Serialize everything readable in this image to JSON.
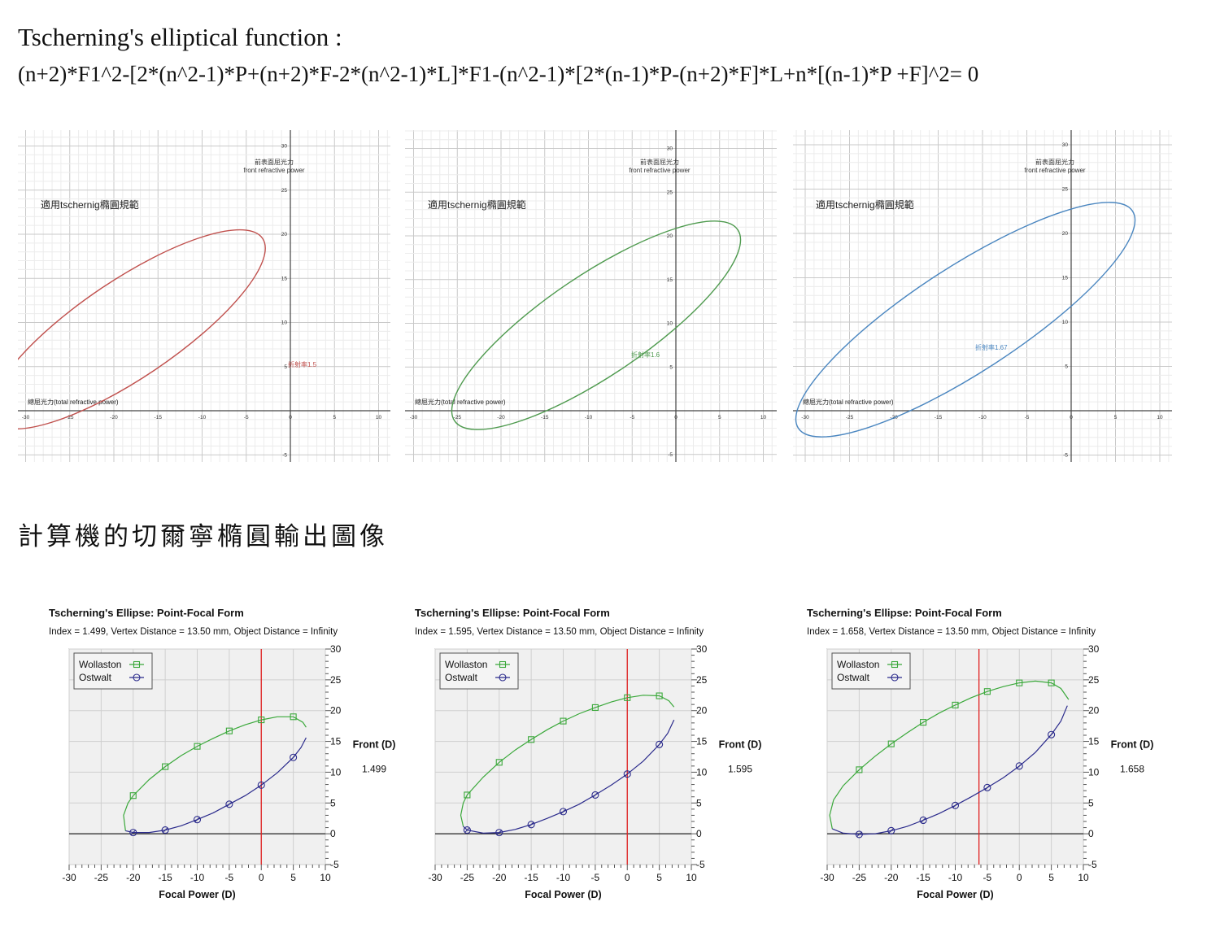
{
  "header": {
    "title": "Tscherning's elliptical function :",
    "formula": "(n+2)*F1^2-[2*(n^2-1)*P+(n+2)*F-2*(n^2-1)*L]*F1-(n^2-1)*[2*(n-1)*P-(n+2)*F]*L+n*[(n-1)*P +F]^2= 0"
  },
  "section2_title": "計算機的切爾寧橢圓輸出圖像",
  "graph_plots": [
    {
      "region_label": "適用tschernig橢圓規範",
      "y_axis_label_cn": "前表面屈光力",
      "y_axis_label_en": "front refractive power",
      "x_axis_label": "總屈光力(total refractive power)",
      "curve_label": "折射率1.5",
      "curve_color": "#c0504d",
      "x_ticks": [
        "-30",
        "-25",
        "-20",
        "-15",
        "-10",
        "-5",
        "0",
        "5",
        "10"
      ],
      "y_ticks": [
        "30",
        "25",
        "20",
        "15",
        "10",
        "5",
        "-5"
      ]
    },
    {
      "region_label": "適用tschernig橢圓規範",
      "y_axis_label_cn": "前表面屈光力",
      "y_axis_label_en": "front refractive power",
      "x_axis_label": "總屈光力(total refractive power)",
      "curve_label": "折射率1.6",
      "curve_color": "#4e9a4e",
      "x_ticks": [
        "-30",
        "-25",
        "-20",
        "-15",
        "-10",
        "-5",
        "0",
        "5",
        "10"
      ],
      "y_ticks": [
        "30",
        "25",
        "20",
        "15",
        "10",
        "5",
        "-5"
      ]
    },
    {
      "region_label": "適用tschernig橢圓規範",
      "y_axis_label_cn": "前表面屈光力",
      "y_axis_label_en": "front refractive power",
      "x_axis_label": "總屈光力(total refractive power)",
      "curve_label": "折射率1.67",
      "curve_color": "#4a86c0",
      "x_ticks": [
        "-30",
        "-25",
        "-20",
        "-15",
        "-10",
        "-5",
        "0",
        "5",
        "10"
      ],
      "y_ticks": [
        "30",
        "25",
        "20",
        "15",
        "10",
        "5",
        "-5"
      ]
    }
  ],
  "chart_data": [
    {
      "type": "line",
      "title": "Tscherning's Ellipse: Point-Focal Form",
      "subtitle": "Index = 1.499, Vertex Distance = 13.50 mm, Object Distance = Infinity",
      "xlabel": "Focal Power (D)",
      "ylabel": "Front (D)",
      "ylabel_value": "1.499",
      "xlim": [
        -30,
        10
      ],
      "ylim": [
        -5,
        30
      ],
      "x_ticks": [
        -30,
        -25,
        -20,
        -15,
        -10,
        -5,
        0,
        5,
        10
      ],
      "y_ticks": [
        30,
        25,
        20,
        15,
        10,
        5,
        0,
        -5
      ],
      "legend": "top-left",
      "grid": true,
      "vline_x": 0,
      "series": [
        {
          "name": "Wollaston",
          "color": "#3aa83a",
          "marker": "square",
          "curve": [
            [
              -21.2,
              0.5
            ],
            [
              -21.5,
              3
            ],
            [
              -20.8,
              5
            ],
            [
              -20,
              6.2
            ],
            [
              -17.5,
              8.8
            ],
            [
              -15,
              10.9
            ],
            [
              -12.5,
              12.7
            ],
            [
              -10,
              14.2
            ],
            [
              -7.5,
              15.5
            ],
            [
              -5,
              16.7
            ],
            [
              -2.5,
              17.7
            ],
            [
              0,
              18.5
            ],
            [
              2.5,
              19
            ],
            [
              5,
              19
            ],
            [
              6.5,
              18.1
            ],
            [
              7,
              17.3
            ]
          ],
          "markers": [
            [
              -20,
              6.2
            ],
            [
              -15,
              10.9
            ],
            [
              -10,
              14.2
            ],
            [
              -5,
              16.7
            ],
            [
              0,
              18.5
            ],
            [
              5,
              19
            ]
          ]
        },
        {
          "name": "Ostwalt",
          "color": "#2b2b8c",
          "marker": "circle",
          "curve": [
            [
              -21.2,
              0.5
            ],
            [
              -20,
              0.2
            ],
            [
              -17.5,
              0.2
            ],
            [
              -15,
              0.6
            ],
            [
              -12.5,
              1.3
            ],
            [
              -10,
              2.3
            ],
            [
              -7.5,
              3.4
            ],
            [
              -5,
              4.8
            ],
            [
              -2.5,
              6.2
            ],
            [
              0,
              7.9
            ],
            [
              2.5,
              9.9
            ],
            [
              5,
              12.4
            ],
            [
              6.2,
              14
            ],
            [
              7,
              15.6
            ]
          ],
          "markers": [
            [
              -20,
              0.2
            ],
            [
              -15,
              0.6
            ],
            [
              -10,
              2.3
            ],
            [
              -5,
              4.8
            ],
            [
              0,
              7.9
            ],
            [
              5,
              12.4
            ]
          ]
        }
      ]
    },
    {
      "type": "line",
      "title": "Tscherning's Ellipse: Point-Focal Form",
      "subtitle": "Index = 1.595, Vertex Distance = 13.50 mm, Object Distance = Infinity",
      "xlabel": "Focal Power (D)",
      "ylabel": "Front (D)",
      "ylabel_value": "1.595",
      "xlim": [
        -30,
        10
      ],
      "ylim": [
        -5,
        30
      ],
      "x_ticks": [
        -30,
        -25,
        -20,
        -15,
        -10,
        -5,
        0,
        5,
        10
      ],
      "y_ticks": [
        30,
        25,
        20,
        15,
        10,
        5,
        0,
        -5
      ],
      "legend": "top-left",
      "grid": true,
      "vline_x": 0,
      "series": [
        {
          "name": "Wollaston",
          "color": "#3aa83a",
          "marker": "square",
          "curve": [
            [
              -25.6,
              1.2
            ],
            [
              -26,
              3
            ],
            [
              -25.6,
              5
            ],
            [
              -25,
              6.3
            ],
            [
              -22.5,
              9.2
            ],
            [
              -20,
              11.6
            ],
            [
              -17.5,
              13.6
            ],
            [
              -15,
              15.3
            ],
            [
              -12.5,
              16.9
            ],
            [
              -10,
              18.3
            ],
            [
              -7.5,
              19.5
            ],
            [
              -5,
              20.5
            ],
            [
              -2.5,
              21.4
            ],
            [
              0,
              22.1
            ],
            [
              2.5,
              22.5
            ],
            [
              5,
              22.4
            ],
            [
              6.5,
              21.6
            ],
            [
              7.3,
              20.6
            ]
          ],
          "markers": [
            [
              -25,
              6.3
            ],
            [
              -20,
              11.6
            ],
            [
              -15,
              15.3
            ],
            [
              -10,
              18.3
            ],
            [
              -5,
              20.5
            ],
            [
              0,
              22.1
            ],
            [
              5,
              22.4
            ]
          ]
        },
        {
          "name": "Ostwalt",
          "color": "#2b2b8c",
          "marker": "circle",
          "curve": [
            [
              -25.6,
              1.2
            ],
            [
              -25,
              0.6
            ],
            [
              -22.5,
              0.1
            ],
            [
              -20,
              0.2
            ],
            [
              -17.5,
              0.7
            ],
            [
              -15,
              1.5
            ],
            [
              -12.5,
              2.5
            ],
            [
              -10,
              3.6
            ],
            [
              -7.5,
              4.8
            ],
            [
              -5,
              6.3
            ],
            [
              -2.5,
              7.9
            ],
            [
              0,
              9.7
            ],
            [
              2.5,
              11.8
            ],
            [
              5,
              14.5
            ],
            [
              6.3,
              16.3
            ],
            [
              7.3,
              18.5
            ]
          ],
          "markers": [
            [
              -25,
              0.6
            ],
            [
              -20,
              0.2
            ],
            [
              -15,
              1.5
            ],
            [
              -10,
              3.6
            ],
            [
              -5,
              6.3
            ],
            [
              0,
              9.7
            ],
            [
              5,
              14.5
            ]
          ]
        }
      ]
    },
    {
      "type": "line",
      "title": "Tscherning's Ellipse: Point-Focal Form",
      "subtitle": "Index = 1.658, Vertex Distance = 13.50 mm, Object Distance = Infinity",
      "xlabel": "Focal Power (D)",
      "ylabel": "Front (D)",
      "ylabel_value": "1.658",
      "xlim": [
        -30,
        10
      ],
      "ylim": [
        -5,
        30
      ],
      "x_ticks": [
        -30,
        -25,
        -20,
        -15,
        -10,
        -5,
        0,
        5,
        10
      ],
      "y_ticks": [
        30,
        25,
        20,
        15,
        10,
        5,
        0,
        -5
      ],
      "legend": "top-left",
      "grid": true,
      "vline_x": -6.3,
      "series": [
        {
          "name": "Wollaston",
          "color": "#3aa83a",
          "marker": "square",
          "curve": [
            [
              -29.2,
              0.8
            ],
            [
              -29.6,
              3
            ],
            [
              -29,
              5.5
            ],
            [
              -27.5,
              7.8
            ],
            [
              -25,
              10.4
            ],
            [
              -22.5,
              12.6
            ],
            [
              -20,
              14.6
            ],
            [
              -17.5,
              16.4
            ],
            [
              -15,
              18.1
            ],
            [
              -12.5,
              19.6
            ],
            [
              -10,
              20.9
            ],
            [
              -7.5,
              22.1
            ],
            [
              -5,
              23.1
            ],
            [
              -2.5,
              23.9
            ],
            [
              0,
              24.5
            ],
            [
              2.5,
              24.8
            ],
            [
              5,
              24.5
            ],
            [
              6.5,
              23.6
            ],
            [
              7.7,
              21.8
            ]
          ],
          "markers": [
            [
              -25,
              10.4
            ],
            [
              -20,
              14.6
            ],
            [
              -15,
              18.1
            ],
            [
              -10,
              20.9
            ],
            [
              -5,
              23.1
            ],
            [
              0,
              24.5
            ],
            [
              5,
              24.5
            ]
          ]
        },
        {
          "name": "Ostwalt",
          "color": "#2b2b8c",
          "marker": "circle",
          "curve": [
            [
              -29.2,
              0.8
            ],
            [
              -27.5,
              0.1
            ],
            [
              -25,
              -0.1
            ],
            [
              -22.5,
              0
            ],
            [
              -20,
              0.5
            ],
            [
              -17.5,
              1.2
            ],
            [
              -15,
              2.2
            ],
            [
              -12.5,
              3.3
            ],
            [
              -10,
              4.6
            ],
            [
              -7.5,
              6
            ],
            [
              -5,
              7.5
            ],
            [
              -2.5,
              9.1
            ],
            [
              0,
              11
            ],
            [
              2.5,
              13.2
            ],
            [
              5,
              16.1
            ],
            [
              6.5,
              18.3
            ],
            [
              7.5,
              20.8
            ]
          ],
          "markers": [
            [
              -25,
              -0.1
            ],
            [
              -20,
              0.5
            ],
            [
              -15,
              2.2
            ],
            [
              -10,
              4.6
            ],
            [
              -5,
              7.5
            ],
            [
              0,
              11
            ],
            [
              5,
              16.1
            ]
          ]
        }
      ]
    }
  ]
}
